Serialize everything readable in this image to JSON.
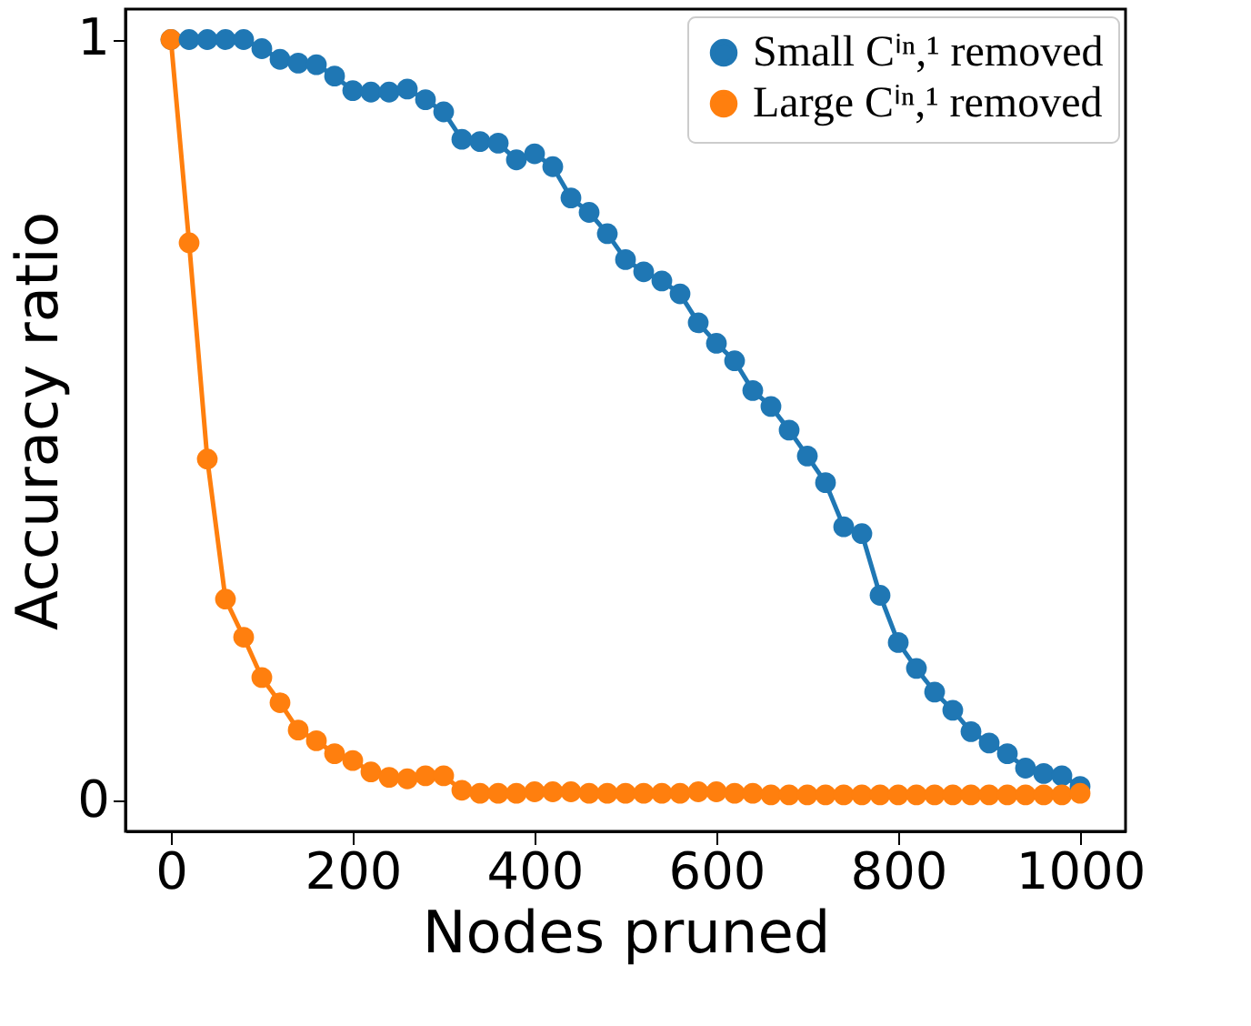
{
  "chart_data": {
    "type": "line",
    "xlabel": "Nodes pruned",
    "ylabel": "Accuracy ratio",
    "x": [
      0,
      20,
      40,
      60,
      80,
      100,
      120,
      140,
      160,
      180,
      200,
      220,
      240,
      260,
      280,
      300,
      320,
      340,
      360,
      380,
      400,
      420,
      440,
      460,
      480,
      500,
      520,
      540,
      560,
      580,
      600,
      620,
      640,
      660,
      680,
      700,
      720,
      740,
      760,
      780,
      800,
      820,
      840,
      860,
      880,
      900,
      920,
      940,
      960,
      980,
      1000
    ],
    "series": [
      {
        "name": "Small Cⁱⁿ,¹ removed",
        "color": "#1f77b4",
        "values": [
          1.0,
          1.0,
          1.0,
          1.0,
          1.0,
          0.988,
          0.974,
          0.969,
          0.967,
          0.952,
          0.933,
          0.931,
          0.931,
          0.935,
          0.921,
          0.905,
          0.869,
          0.866,
          0.864,
          0.842,
          0.85,
          0.833,
          0.792,
          0.773,
          0.745,
          0.711,
          0.695,
          0.683,
          0.666,
          0.628,
          0.601,
          0.578,
          0.539,
          0.518,
          0.487,
          0.453,
          0.418,
          0.36,
          0.351,
          0.27,
          0.208,
          0.174,
          0.143,
          0.119,
          0.091,
          0.076,
          0.062,
          0.043,
          0.036,
          0.033,
          0.019
        ]
      },
      {
        "name": "Large Cⁱⁿ,¹ removed",
        "color": "#ff7f0e",
        "values": [
          1.0,
          0.733,
          0.449,
          0.265,
          0.215,
          0.162,
          0.129,
          0.093,
          0.079,
          0.062,
          0.053,
          0.038,
          0.031,
          0.029,
          0.033,
          0.033,
          0.014,
          0.01,
          0.01,
          0.01,
          0.012,
          0.012,
          0.012,
          0.01,
          0.01,
          0.01,
          0.01,
          0.01,
          0.01,
          0.012,
          0.012,
          0.01,
          0.01,
          0.008,
          0.008,
          0.008,
          0.008,
          0.008,
          0.008,
          0.008,
          0.008,
          0.008,
          0.008,
          0.008,
          0.008,
          0.008,
          0.008,
          0.008,
          0.008,
          0.008,
          0.01
        ]
      }
    ],
    "xlim": [
      -50,
      1050
    ],
    "ylim": [
      -0.04,
      1.04
    ],
    "xticks": [
      0,
      200,
      400,
      600,
      800,
      1000
    ],
    "yticks": [
      0,
      1
    ],
    "grid": false,
    "legend": "top right",
    "marker": "circle",
    "line_style": "solid"
  }
}
